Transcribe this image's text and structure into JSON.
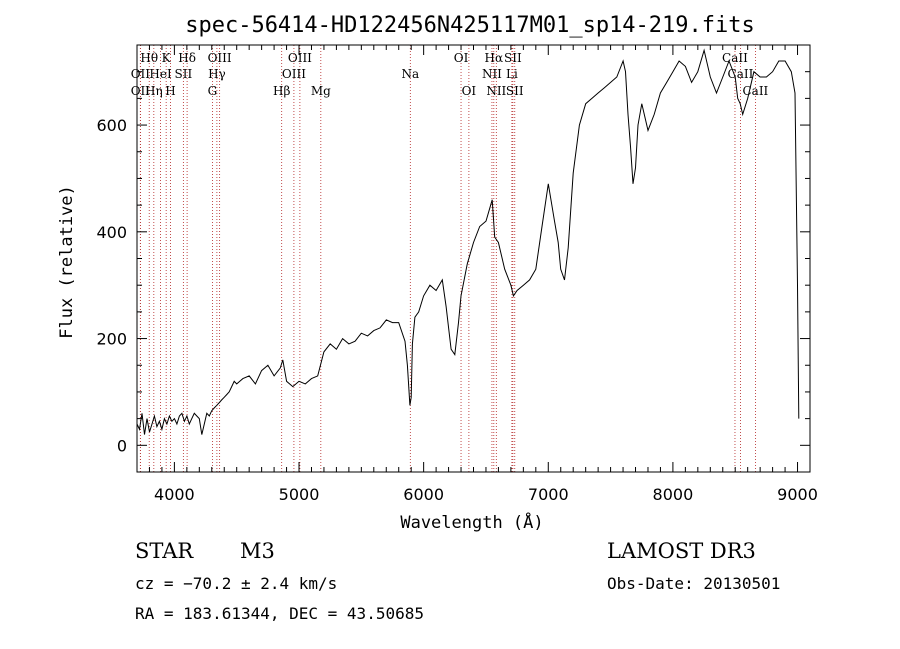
{
  "chart_data": {
    "type": "line",
    "title": "spec-56414-HD122456N425117M01_sp14-219.fits",
    "xlabel": "Wavelength (Å)",
    "ylabel": "Flux (relative)",
    "xlim": [
      3700,
      9100
    ],
    "ylim": [
      -50,
      750
    ],
    "xticks": [
      4000,
      5000,
      6000,
      7000,
      8000,
      9000
    ],
    "yticks": [
      0,
      200,
      400,
      600
    ],
    "series": [
      {
        "name": "spectrum",
        "x": [
          3700,
          3720,
          3740,
          3760,
          3780,
          3800,
          3820,
          3840,
          3860,
          3880,
          3900,
          3920,
          3940,
          3960,
          3980,
          4000,
          4020,
          4040,
          4060,
          4080,
          4100,
          4120,
          4140,
          4160,
          4180,
          4200,
          4220,
          4240,
          4260,
          4280,
          4300,
          4320,
          4340,
          4360,
          4380,
          4400,
          4420,
          4440,
          4460,
          4480,
          4500,
          4550,
          4600,
          4650,
          4700,
          4750,
          4800,
          4850,
          4870,
          4900,
          4950,
          5000,
          5050,
          5100,
          5150,
          5200,
          5250,
          5300,
          5350,
          5400,
          5450,
          5500,
          5550,
          5600,
          5650,
          5700,
          5750,
          5800,
          5850,
          5870,
          5890,
          5900,
          5910,
          5930,
          5960,
          6000,
          6050,
          6100,
          6150,
          6180,
          6200,
          6220,
          6250,
          6280,
          6300,
          6350,
          6400,
          6450,
          6500,
          6550,
          6570,
          6600,
          6650,
          6700,
          6720,
          6750,
          6800,
          6850,
          6900,
          6950,
          7000,
          7050,
          7080,
          7100,
          7130,
          7160,
          7200,
          7250,
          7300,
          7350,
          7400,
          7450,
          7500,
          7550,
          7600,
          7620,
          7640,
          7660,
          7680,
          7700,
          7720,
          7750,
          7800,
          7850,
          7900,
          7950,
          8000,
          8050,
          8100,
          8150,
          8200,
          8250,
          8300,
          8350,
          8400,
          8450,
          8500,
          8520,
          8540,
          8560,
          8600,
          8650,
          8700,
          8750,
          8800,
          8850,
          8900,
          8950,
          8980,
          9000,
          9010
        ],
        "values": [
          40,
          30,
          60,
          20,
          50,
          25,
          40,
          55,
          35,
          45,
          30,
          50,
          40,
          55,
          45,
          50,
          40,
          55,
          60,
          45,
          55,
          40,
          50,
          60,
          55,
          50,
          20,
          40,
          60,
          55,
          65,
          70,
          75,
          80,
          85,
          90,
          95,
          100,
          110,
          120,
          115,
          125,
          130,
          115,
          140,
          150,
          130,
          145,
          160,
          120,
          110,
          120,
          115,
          125,
          130,
          175,
          190,
          180,
          200,
          190,
          195,
          210,
          205,
          215,
          220,
          235,
          230,
          230,
          195,
          150,
          75,
          90,
          190,
          240,
          250,
          280,
          300,
          290,
          310,
          260,
          220,
          180,
          170,
          230,
          280,
          340,
          380,
          410,
          420,
          460,
          390,
          380,
          330,
          300,
          280,
          290,
          300,
          310,
          330,
          410,
          490,
          420,
          380,
          330,
          310,
          370,
          510,
          600,
          640,
          650,
          660,
          670,
          680,
          690,
          720,
          700,
          620,
          560,
          490,
          520,
          600,
          640,
          590,
          620,
          660,
          680,
          700,
          720,
          710,
          680,
          700,
          740,
          690,
          660,
          690,
          720,
          690,
          650,
          640,
          620,
          650,
          700,
          690,
          690,
          700,
          720,
          720,
          700,
          660,
          300,
          50
        ]
      }
    ],
    "emission_lines": [
      {
        "label": "OII",
        "wave": 3727,
        "row": 1
      },
      {
        "label": "OII",
        "wave": 3727,
        "row": 3
      },
      {
        "label": "Hθ",
        "wave": 3798,
        "row": 0
      },
      {
        "label": "Hη",
        "wave": 3835,
        "row": 3
      },
      {
        "label": "HeI",
        "wave": 3889,
        "row": 1
      },
      {
        "label": "K",
        "wave": 3934,
        "row": 0
      },
      {
        "label": "H",
        "wave": 3969,
        "row": 3
      },
      {
        "label": "SII",
        "wave": 4072,
        "row": 1
      },
      {
        "label": "Hδ",
        "wave": 4102,
        "row": 0
      },
      {
        "label": "OIII",
        "wave": 4363,
        "row": 0
      },
      {
        "label": "Hγ",
        "wave": 4341,
        "row": 1
      },
      {
        "label": "G",
        "wave": 4305,
        "row": 3
      },
      {
        "label": "Hβ",
        "wave": 4861,
        "row": 3
      },
      {
        "label": "OIII",
        "wave": 4959,
        "row": 1
      },
      {
        "label": "OIII",
        "wave": 5007,
        "row": 0
      },
      {
        "label": "Mg",
        "wave": 5175,
        "row": 3
      },
      {
        "label": "Na",
        "wave": 5893,
        "row": 2
      },
      {
        "label": "OI",
        "wave": 6300,
        "row": 0
      },
      {
        "label": "OI",
        "wave": 6363,
        "row": 3
      },
      {
        "label": "NII",
        "wave": 6548,
        "row": 1
      },
      {
        "label": "Hα",
        "wave": 6563,
        "row": 0
      },
      {
        "label": "NII",
        "wave": 6583,
        "row": 3
      },
      {
        "label": "SII",
        "wave": 6716,
        "row": 0
      },
      {
        "label": "Li",
        "wave": 6708,
        "row": 1
      },
      {
        "label": "SII",
        "wave": 6731,
        "row": 3
      },
      {
        "label": "CaII",
        "wave": 8498,
        "row": 0
      },
      {
        "label": "CaII",
        "wave": 8542,
        "row": 1
      },
      {
        "label": "CaII",
        "wave": 8662,
        "row": 3
      }
    ]
  },
  "info": {
    "object_class": "STAR",
    "subclass": "M3",
    "survey": "LAMOST DR3",
    "cz": "cz = −70.2 ± 2.4 km/s",
    "obs_date": "Obs-Date: 20130501",
    "coords": "RA = 183.61344, DEC =  43.50685"
  }
}
